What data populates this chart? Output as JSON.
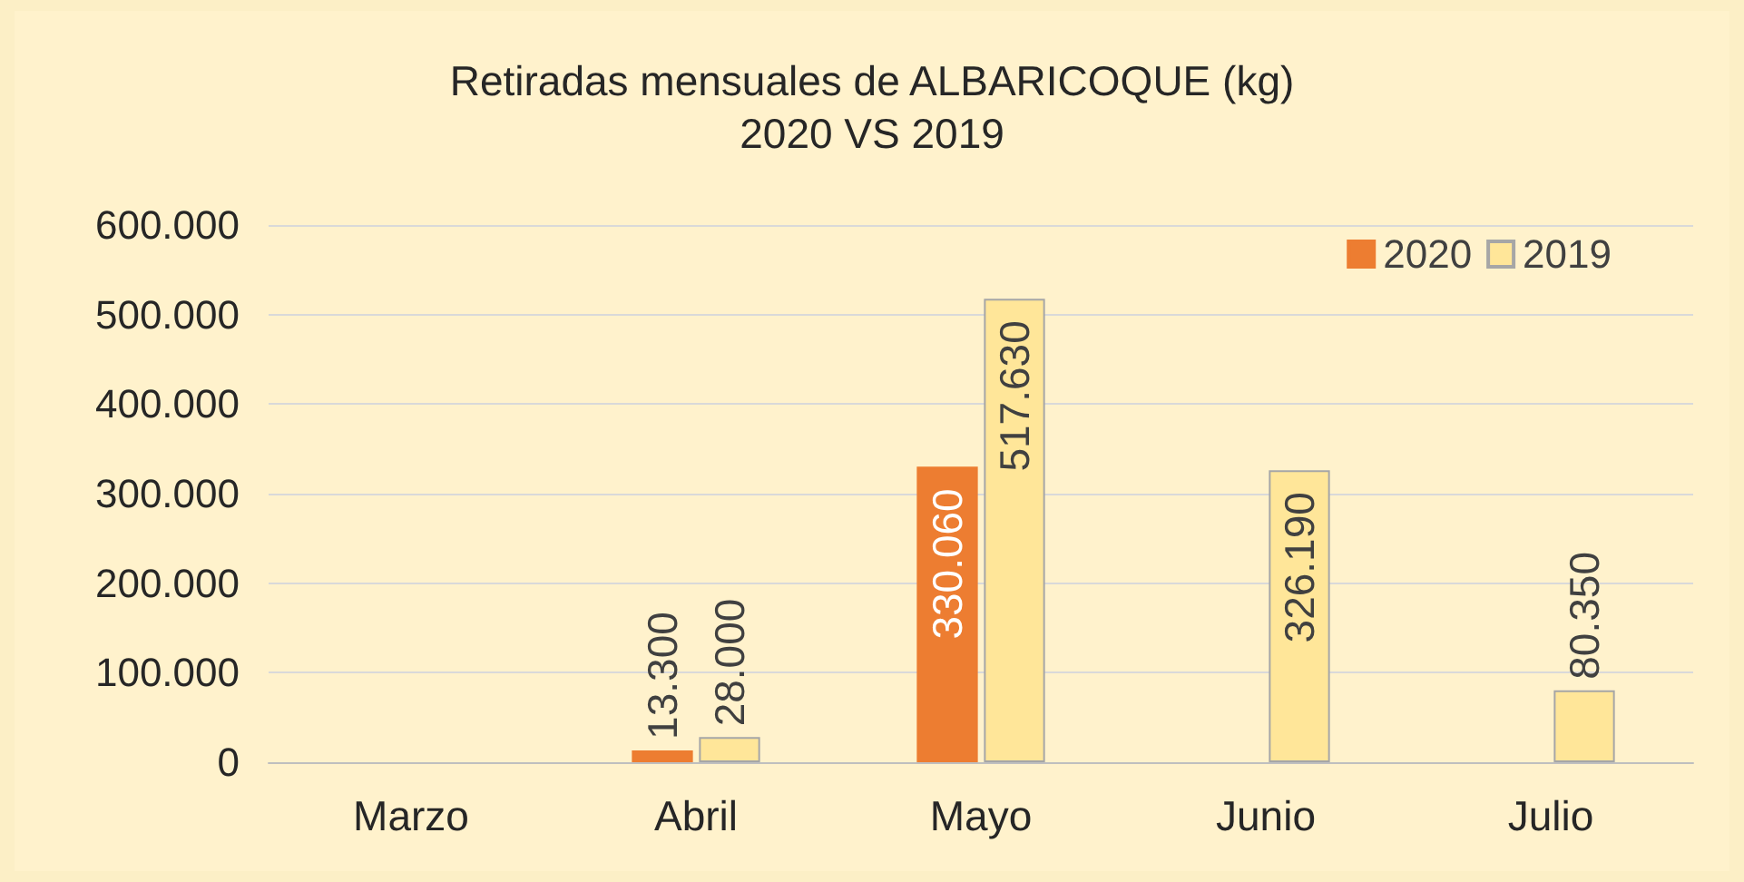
{
  "chart_data": {
    "type": "bar",
    "title": "Retiradas mensuales de ALBARICOQUE (kg)",
    "subtitle": "2020 VS 2019",
    "categories": [
      "Marzo",
      "Abril",
      "Mayo",
      "Junio",
      "Julio"
    ],
    "series": [
      {
        "name": "2020",
        "color": "#ed7d31",
        "values": [
          null,
          13300,
          330060,
          null,
          null
        ],
        "value_labels": [
          null,
          "13.300",
          "330.060",
          null,
          null
        ]
      },
      {
        "name": "2019",
        "color": "#ffe699",
        "values": [
          null,
          28000,
          517630,
          326190,
          80350
        ],
        "value_labels": [
          null,
          "28.000",
          "517.630",
          "326.190",
          "80.350"
        ]
      }
    ],
    "ylim": [
      0,
      600000
    ],
    "yticks": [
      0,
      {
        "value": 100000,
        "label": "100.000"
      },
      {
        "value": 200000,
        "label": "200.000"
      },
      {
        "value": 300000,
        "label": "300.000"
      },
      {
        "value": 400000,
        "label": "400.000"
      },
      {
        "value": 500000,
        "label": "500.000"
      },
      {
        "value": 600000,
        "label": "600.000"
      }
    ],
    "grid": "y",
    "legend": "top right"
  }
}
